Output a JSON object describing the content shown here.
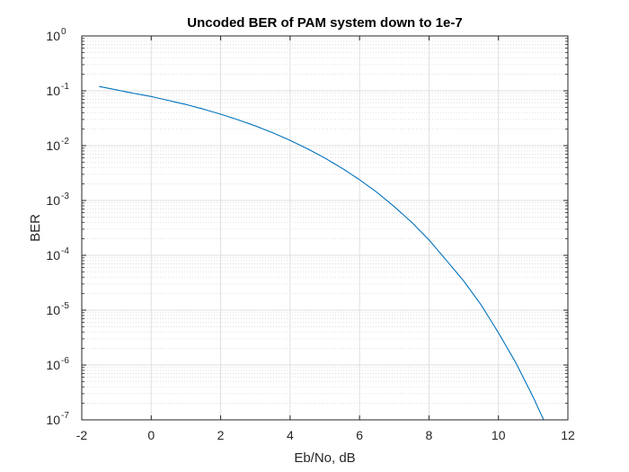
{
  "chart_data": {
    "type": "line",
    "title": "Uncoded BER of PAM system down to 1e-7",
    "xlabel": "Eb/No, dB",
    "ylabel": "BER",
    "xlim": [
      -2,
      12
    ],
    "ylim": [
      1e-07,
      1
    ],
    "yscale": "log",
    "grid": true,
    "minor_grid": true,
    "x_ticks": [
      -2,
      0,
      2,
      4,
      6,
      8,
      10,
      12
    ],
    "x_tick_labels": [
      "-2",
      "0",
      "2",
      "4",
      "6",
      "8",
      "10",
      "12"
    ],
    "y_ticks": [
      1e-07,
      1e-06,
      1e-05,
      0.0001,
      0.001,
      0.01,
      0.1,
      1
    ],
    "y_tick_labels": [
      {
        "base": "10",
        "exp": "-7"
      },
      {
        "base": "10",
        "exp": "-6"
      },
      {
        "base": "10",
        "exp": "-5"
      },
      {
        "base": "10",
        "exp": "-4"
      },
      {
        "base": "10",
        "exp": "-3"
      },
      {
        "base": "10",
        "exp": "-2"
      },
      {
        "base": "10",
        "exp": "-1"
      },
      {
        "base": "10",
        "exp": "0"
      }
    ],
    "series": [
      {
        "color": "#0072bd",
        "x": [
          -1.5,
          -1.0,
          -0.5,
          0.0,
          0.5,
          1.0,
          1.5,
          2.0,
          2.5,
          3.0,
          3.5,
          4.0,
          4.5,
          5.0,
          5.5,
          6.0,
          6.5,
          7.0,
          7.5,
          8.0,
          8.5,
          9.0,
          9.5,
          10.0,
          10.5,
          11.0,
          11.3
        ],
        "y": [
          0.1199,
          0.104,
          0.0897,
          0.0787,
          0.0666,
          0.0563,
          0.0464,
          0.0375,
          0.0296,
          0.0229,
          0.0172,
          0.0125,
          0.00877,
          0.00595,
          0.00386,
          0.00239,
          0.00141,
          0.000773,
          0.000401,
          0.000191,
          8.1e-05,
          3.4e-05,
          1.25e-05,
          3.87e-06,
          1.1e-06,
          2.6e-07,
          1e-07
        ]
      }
    ]
  }
}
